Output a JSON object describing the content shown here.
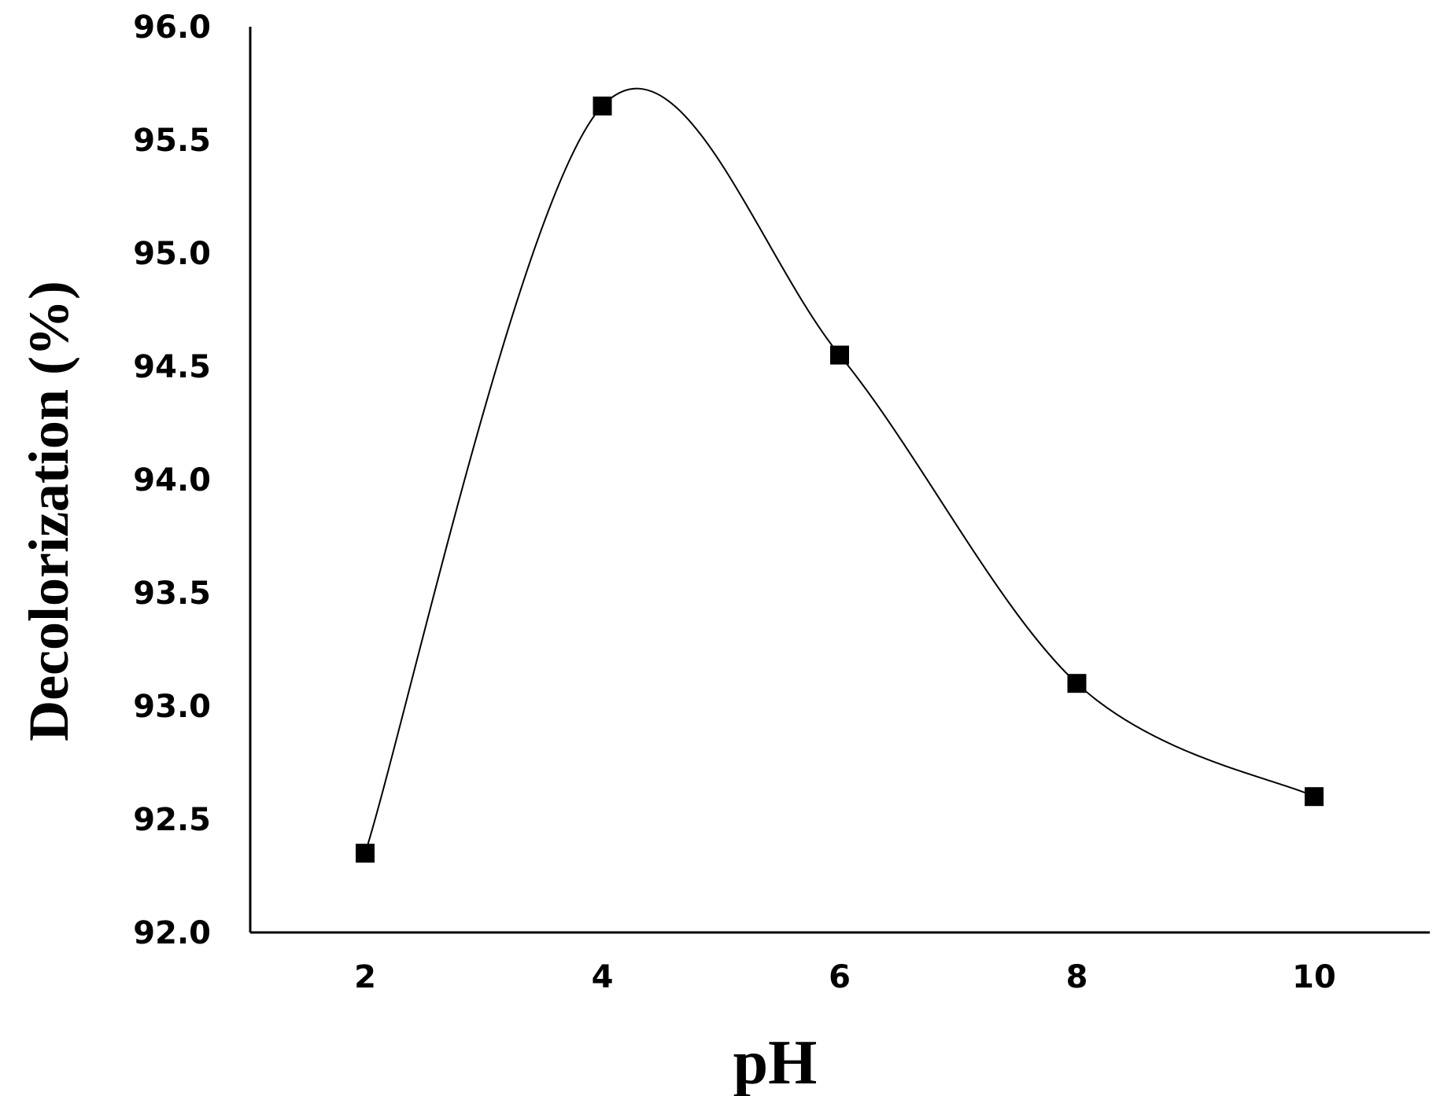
{
  "chart_data": {
    "type": "line",
    "title": "",
    "xlabel": "pH",
    "ylabel": "Decolorization  (%)",
    "x": [
      2,
      4,
      6,
      8,
      10
    ],
    "x_tick_labels": [
      "2",
      "4",
      "6",
      "8",
      "10"
    ],
    "y_tick_labels": [
      "92.0",
      "92.5",
      "93.0",
      "93.5",
      "94.0",
      "94.5",
      "95.0",
      "95.5",
      "96.0"
    ],
    "ylim": [
      92.0,
      96.0
    ],
    "xlim": [
      1,
      11
    ],
    "grid": false,
    "legend": "none",
    "smooth": true,
    "marker": "square",
    "colors": {
      "line": "#000000",
      "marker": "#000000"
    },
    "series": [
      {
        "values": [
          92.35,
          95.65,
          94.55,
          93.1,
          92.6
        ]
      }
    ]
  }
}
